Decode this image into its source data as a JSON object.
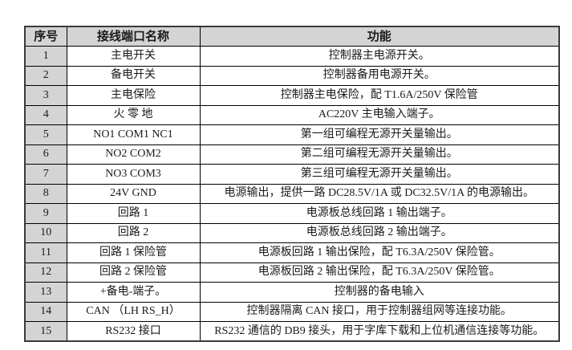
{
  "colors": {
    "header_bg": "#d4d4d4",
    "border": "#000000"
  },
  "table": {
    "headers": [
      "序号",
      "接线端口名称",
      "功能"
    ],
    "rows": [
      {
        "no": "1",
        "name": "主电开关",
        "func": "控制器主电源开关。"
      },
      {
        "no": "2",
        "name": "备电开关",
        "func": "控制器备用电源开关。"
      },
      {
        "no": "3",
        "name": "主电保险",
        "func": "控制器主电保险，配 T1.6A/250V 保险管"
      },
      {
        "no": "4",
        "name": "火 零 地",
        "func": "AC220V 主电输入端子。"
      },
      {
        "no": "5",
        "name": "NO1 COM1 NC1",
        "func": "第一组可编程无源开关量输出。"
      },
      {
        "no": "6",
        "name": "NO2 COM2",
        "func": "第二组可编程无源开关量输出。"
      },
      {
        "no": "7",
        "name": "NO3 COM3",
        "func": "第三组可编程无源开关量输出。"
      },
      {
        "no": "8",
        "name": "24V GND",
        "func": "电源输出，提供一路 DC28.5V/1A 或 DC32.5V/1A 的电源输出。"
      },
      {
        "no": "9",
        "name": "回路 1",
        "func": "电源板总线回路 1 输出端子。"
      },
      {
        "no": "10",
        "name": "回路 2",
        "func": "电源板总线回路 2 输出端子。"
      },
      {
        "no": "11",
        "name": "回路 1 保险管",
        "func": "电源板回路 1 输出保险，配 T6.3A/250V 保险管。"
      },
      {
        "no": "12",
        "name": "回路 2 保险管",
        "func": "电源板回路 2 输出保险，配 T6.3A/250V 保险管。"
      },
      {
        "no": "13",
        "name": "+备电-端子。",
        "func": "控制器的备电输入"
      },
      {
        "no": "14",
        "name": "CAN （LH RS_H）",
        "func": "控制器隔离 CAN 接口，用于控制器组网等连接功能。"
      },
      {
        "no": "15",
        "name": "RS232 接口",
        "func": "RS232 通信的 DB9 接头，用于字库下载和上位机通信连接等功能。"
      }
    ]
  }
}
